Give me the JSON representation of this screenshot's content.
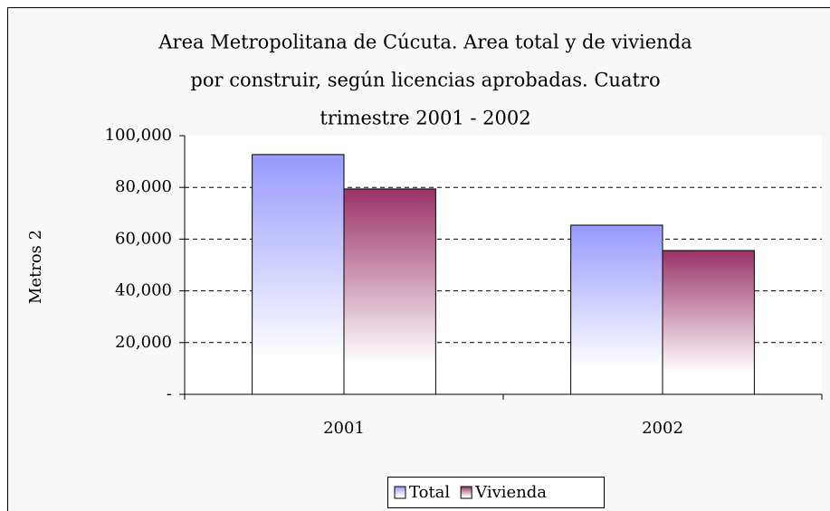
{
  "chart_data": {
    "type": "bar",
    "title": [
      "Area Metropolitana de Cúcuta. Area total y de vivienda",
      "por construir, según licencias aprobadas. Cuatro",
      "trimestre 2001 - 2002"
    ],
    "y_label": "Metros 2",
    "categories": [
      "2001",
      "2002"
    ],
    "series": [
      {
        "name": "Total",
        "color": "#9999ff",
        "values": [
          92700,
          65400
        ]
      },
      {
        "name": "Vivienda",
        "color": "#993366",
        "values": [
          79400,
          55600
        ]
      }
    ],
    "ylim": [
      0,
      100000
    ],
    "yticks": [
      {
        "value": 0,
        "label": "-"
      },
      {
        "value": 20000,
        "label": "20,000"
      },
      {
        "value": 40000,
        "label": "40,000"
      },
      {
        "value": 60000,
        "label": "60,000"
      },
      {
        "value": 80000,
        "label": "80,000"
      },
      {
        "value": 100000,
        "label": "100,000"
      }
    ],
    "grid": true,
    "legend": "bottom"
  }
}
